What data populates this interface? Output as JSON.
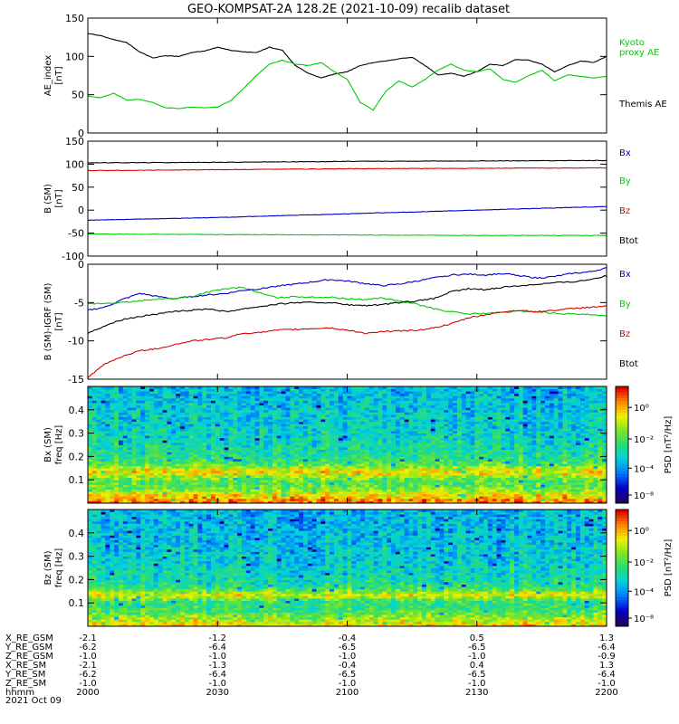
{
  "title": "GEO-KOMPSAT-2A 128.2E (2021-10-09) recalib dataset",
  "colors": {
    "black": "#000000",
    "green": "#00cc00",
    "blue": "#0000cc",
    "red": "#dd0000"
  },
  "chart_data": [
    {
      "type": "line",
      "ylabel": "AE_index",
      "yunit": "[nT]",
      "ylim": [
        0,
        150
      ],
      "yticks": [
        "0",
        "50",
        "100",
        "150"
      ],
      "x": [
        0,
        3,
        6,
        9,
        12,
        15,
        18,
        21,
        24,
        27,
        30,
        33,
        36,
        39,
        42,
        45,
        48,
        51,
        54,
        57,
        60,
        63,
        66,
        69,
        72,
        75,
        78,
        81,
        84,
        87,
        90,
        93,
        96,
        99,
        102,
        105,
        108,
        111,
        114,
        117,
        120
      ],
      "series": [
        {
          "name": "Themis AE",
          "color": "#000000",
          "values": [
            130,
            127,
            122,
            118,
            106,
            98,
            101,
            100,
            105,
            107,
            112,
            108,
            106,
            105,
            112,
            108,
            88,
            78,
            72,
            77,
            80,
            88,
            92,
            94,
            97,
            99,
            88,
            76,
            78,
            74,
            80,
            90,
            88,
            96,
            95,
            90,
            80,
            88,
            94,
            92,
            100
          ]
        },
        {
          "name": "Kyoto proxy AE",
          "color": "#00cc00",
          "values": [
            48,
            46,
            52,
            43,
            44,
            40,
            33,
            32,
            34,
            33,
            34,
            42,
            58,
            75,
            90,
            95,
            90,
            88,
            92,
            80,
            70,
            40,
            30,
            55,
            68,
            60,
            70,
            82,
            90,
            82,
            80,
            84,
            70,
            66,
            75,
            82,
            68,
            76,
            74,
            72,
            74
          ]
        }
      ],
      "legend": [
        "Kyoto",
        "proxy AE",
        "Themis AE"
      ]
    },
    {
      "type": "line",
      "ylabel": "B (SM)",
      "yunit": "[nT]",
      "ylim": [
        -100,
        150
      ],
      "yticks": [
        "-100",
        "-50",
        "0",
        "50",
        "100",
        "150"
      ],
      "x": [
        0,
        30,
        60,
        90,
        120
      ],
      "series": [
        {
          "name": "Btot",
          "color": "#000000",
          "values": [
            103,
            104,
            106,
            107,
            108
          ]
        },
        {
          "name": "Bz",
          "color": "#dd0000",
          "values": [
            86,
            88,
            90,
            91,
            92
          ]
        },
        {
          "name": "Bx",
          "color": "#0000cc",
          "values": [
            -22,
            -16,
            -8,
            0,
            8
          ]
        },
        {
          "name": "By",
          "color": "#00cc00",
          "values": [
            -52,
            -53,
            -54,
            -55,
            -55
          ]
        }
      ],
      "legend": [
        "Bx",
        "By",
        "Bz",
        "Btot"
      ]
    },
    {
      "type": "line",
      "ylabel": "B (SM)-IGRF (SM)",
      "yunit": "[nT]",
      "ylim": [
        -15,
        0
      ],
      "yticks": [
        "-15",
        "-10",
        "-5",
        "0"
      ],
      "x": [
        0,
        4,
        8,
        12,
        16,
        20,
        24,
        28,
        32,
        36,
        40,
        44,
        48,
        52,
        56,
        60,
        64,
        68,
        72,
        76,
        80,
        84,
        88,
        92,
        96,
        100,
        104,
        108,
        112,
        116,
        120
      ],
      "series": [
        {
          "name": "Bx",
          "color": "#0000cc",
          "values": [
            -6.0,
            -5.6,
            -4.6,
            -3.8,
            -4.2,
            -4.5,
            -4.2,
            -4.0,
            -3.8,
            -3.4,
            -3.2,
            -2.8,
            -2.6,
            -2.3,
            -2.0,
            -2.2,
            -2.5,
            -2.8,
            -2.6,
            -2.2,
            -1.8,
            -1.4,
            -1.3,
            -1.4,
            -1.2,
            -1.5,
            -1.8,
            -1.6,
            -1.2,
            -1.0,
            -0.5
          ]
        },
        {
          "name": "By",
          "color": "#00cc00",
          "values": [
            -5.2,
            -5.1,
            -5.0,
            -4.8,
            -4.5,
            -4.5,
            -4.2,
            -3.6,
            -3.2,
            -3.0,
            -3.8,
            -4.4,
            -4.2,
            -4.3,
            -4.3,
            -4.5,
            -4.6,
            -4.4,
            -4.8,
            -5.2,
            -5.8,
            -6.2,
            -6.5,
            -6.4,
            -6.3,
            -6.1,
            -6.2,
            -6.4,
            -6.5,
            -6.6,
            -6.8
          ]
        },
        {
          "name": "Btot",
          "color": "#000000",
          "values": [
            -9.0,
            -8.0,
            -7.2,
            -6.8,
            -6.5,
            -6.2,
            -6.0,
            -5.8,
            -6.2,
            -5.8,
            -5.5,
            -5.2,
            -5.0,
            -5.0,
            -5.0,
            -5.3,
            -5.4,
            -5.3,
            -5.0,
            -4.8,
            -4.5,
            -3.6,
            -3.2,
            -3.3,
            -3.0,
            -2.8,
            -2.6,
            -2.4,
            -2.3,
            -2.0,
            -1.5
          ]
        },
        {
          "name": "Bz",
          "color": "#dd0000",
          "values": [
            -14.8,
            -13.0,
            -12.0,
            -11.3,
            -11.0,
            -10.5,
            -10.0,
            -9.8,
            -9.6,
            -9.0,
            -8.9,
            -8.6,
            -8.5,
            -8.4,
            -8.3,
            -8.6,
            -9.0,
            -8.8,
            -8.7,
            -8.6,
            -8.3,
            -7.8,
            -7.0,
            -6.6,
            -6.2,
            -6.0,
            -6.2,
            -6.0,
            -5.8,
            -5.6,
            -5.5
          ]
        }
      ],
      "legend": [
        "Bx",
        "By",
        "Bz",
        "Btot"
      ]
    },
    {
      "type": "heatmap",
      "ylabel": "Bx (SM)",
      "yunit": "freq [Hz]",
      "ylim": [
        0,
        0.5
      ],
      "yticks": [
        "0.1",
        "0.2",
        "0.3",
        "0.4"
      ],
      "colorbar_label": "PSD [nT²/Hz]",
      "colorbar_ticks": [
        "10⁰",
        "10⁻²",
        "10⁻⁴",
        "10⁻⁸"
      ],
      "profile": [
        0.88,
        0.85,
        0.8,
        0.75,
        0.7,
        0.64,
        0.6,
        0.56,
        0.55,
        0.55,
        0.6,
        0.66,
        0.72,
        0.75,
        0.72,
        0.65,
        0.58,
        0.54,
        0.5,
        0.48,
        0.47,
        0.46,
        0.45,
        0.44,
        0.44,
        0.43,
        0.42,
        0.42,
        0.41,
        0.41,
        0.4,
        0.4,
        0.39,
        0.39,
        0.39,
        0.38,
        0.38,
        0.38,
        0.38,
        0.37,
        0.37,
        0.37,
        0.37,
        0.36,
        0.36,
        0.36,
        0.36,
        0.36,
        0.35,
        0.35
      ]
    },
    {
      "type": "heatmap",
      "ylabel": "Bz (SM)",
      "yunit": "freq [Hz]",
      "ylim": [
        0,
        0.5
      ],
      "yticks": [
        "0.1",
        "0.2",
        "0.3",
        "0.4"
      ],
      "colorbar_label": "PSD [nT²/Hz]",
      "colorbar_ticks": [
        "10⁰",
        "10⁻²",
        "10⁻⁴",
        "10⁻⁸"
      ],
      "profile": [
        0.78,
        0.74,
        0.7,
        0.66,
        0.62,
        0.58,
        0.55,
        0.52,
        0.5,
        0.5,
        0.52,
        0.58,
        0.66,
        0.72,
        0.66,
        0.58,
        0.52,
        0.48,
        0.46,
        0.45,
        0.44,
        0.43,
        0.42,
        0.42,
        0.41,
        0.4,
        0.4,
        0.39,
        0.39,
        0.38,
        0.38,
        0.38,
        0.37,
        0.37,
        0.37,
        0.36,
        0.36,
        0.36,
        0.36,
        0.35,
        0.35,
        0.35,
        0.35,
        0.35,
        0.34,
        0.34,
        0.34,
        0.34,
        0.34,
        0.34
      ]
    }
  ],
  "ephemeris": {
    "labels": [
      "X_RE_GSM",
      "Y_RE_GSM",
      "Z_RE_GSM",
      "X_RE_SM",
      "Y_RE_SM",
      "Z_RE_SM",
      "hhmm",
      "2021 Oct 09"
    ],
    "columns": [
      [
        "-2.1",
        "-6.2",
        "-1.0",
        "-2.1",
        "-6.2",
        "-1.0",
        "2000"
      ],
      [
        "-1.2",
        "-6.4",
        "-1.0",
        "-1.3",
        "-6.4",
        "-1.0",
        "2030"
      ],
      [
        "-0.4",
        "-6.5",
        "-1.0",
        "-0.4",
        "-6.5",
        "-1.0",
        "2100"
      ],
      [
        "0.5",
        "-6.5",
        "-1.0",
        "0.4",
        "-6.5",
        "-1.0",
        "2130"
      ],
      [
        "1.3",
        "-6.4",
        "-0.9",
        "1.3",
        "-6.4",
        "-1.0",
        "2200"
      ]
    ]
  }
}
